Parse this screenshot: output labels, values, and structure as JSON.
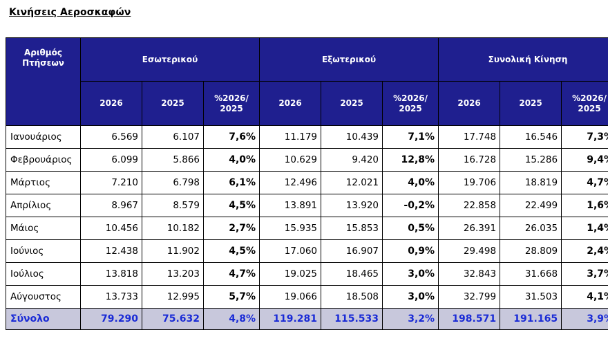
{
  "title": "Κινήσεις Αεροσκαφών",
  "header": {
    "corner": "Αριθμός Πτήσεων",
    "groups": [
      "Εσωτερικού",
      "Εξωτερικού",
      "Συνολική Κίνηση"
    ],
    "sub": [
      "2026",
      "2025",
      "%2026/ 2025"
    ]
  },
  "rows": [
    {
      "month": "Ιανουάριος",
      "v": [
        "6.569",
        "6.107",
        "7,6%",
        "11.179",
        "10.439",
        "7,1%",
        "17.748",
        "16.546",
        "7,3%"
      ]
    },
    {
      "month": "Φεβρουάριος",
      "v": [
        "6.099",
        "5.866",
        "4,0%",
        "10.629",
        "9.420",
        "12,8%",
        "16.728",
        "15.286",
        "9,4%"
      ]
    },
    {
      "month": "Μάρτιος",
      "v": [
        "7.210",
        "6.798",
        "6,1%",
        "12.496",
        "12.021",
        "4,0%",
        "19.706",
        "18.819",
        "4,7%"
      ]
    },
    {
      "month": "Απρίλιος",
      "v": [
        "8.967",
        "8.579",
        "4,5%",
        "13.891",
        "13.920",
        "-0,2%",
        "22.858",
        "22.499",
        "1,6%"
      ]
    },
    {
      "month": "Μάιος",
      "v": [
        "10.456",
        "10.182",
        "2,7%",
        "15.935",
        "15.853",
        "0,5%",
        "26.391",
        "26.035",
        "1,4%"
      ]
    },
    {
      "month": "Ιούνιος",
      "v": [
        "12.438",
        "11.902",
        "4,5%",
        "17.060",
        "16.907",
        "0,9%",
        "29.498",
        "28.809",
        "2,4%"
      ]
    },
    {
      "month": "Ιούλιος",
      "v": [
        "13.818",
        "13.203",
        "4,7%",
        "19.025",
        "18.465",
        "3,0%",
        "32.843",
        "31.668",
        "3,7%"
      ]
    },
    {
      "month": "Αύγουστος",
      "v": [
        "13.733",
        "12.995",
        "5,7%",
        "19.066",
        "18.508",
        "3,0%",
        "32.799",
        "31.503",
        "4,1%"
      ]
    }
  ],
  "total": {
    "month": "Σύνολο",
    "v": [
      "79.290",
      "75.632",
      "4,8%",
      "119.281",
      "115.533",
      "3,2%",
      "198.571",
      "191.165",
      "3,9%"
    ]
  }
}
